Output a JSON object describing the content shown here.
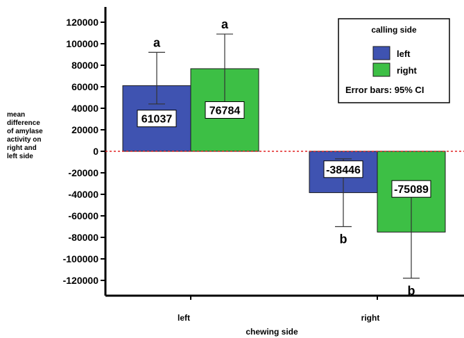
{
  "chart_data": {
    "type": "bar",
    "categories": [
      "left",
      "right"
    ],
    "series": [
      {
        "name": "left",
        "color": "#3f53b1",
        "values": [
          61037,
          -38446
        ],
        "ci": [
          [
            44000,
            92000
          ],
          [
            -70000,
            -7000
          ]
        ],
        "letters": [
          "a",
          "b"
        ]
      },
      {
        "name": "right",
        "color": "#3dbf45",
        "values": [
          76784,
          -75089
        ],
        "ci": [
          [
            44000,
            109000
          ],
          [
            -118000,
            -31000
          ]
        ],
        "letters": [
          "a",
          "b"
        ]
      }
    ],
    "xlabel": "chewing side",
    "ylabel_lines": [
      "mean",
      "difference",
      "of amylase",
      "activity on",
      "right and",
      "left  side"
    ],
    "ylim": [
      -128000,
      132000
    ],
    "yticks": [
      120000,
      100000,
      80000,
      60000,
      40000,
      20000,
      0,
      -20000,
      -40000,
      -60000,
      -80000,
      -100000,
      -120000
    ],
    "yticklabels": [
      "120000",
      "100000",
      "80000",
      "60000",
      "40000",
      "20000",
      "0",
      "-20000",
      "-40000",
      "-60000",
      "-80000",
      "-100000",
      "-120000"
    ],
    "value_labels": [
      [
        "61037",
        "-38446"
      ],
      [
        "76784",
        "-75089"
      ]
    ],
    "reference_line": {
      "y": 0,
      "color": "#e02020",
      "style": "dashed"
    },
    "legend": {
      "title": "calling side",
      "items": [
        "left",
        "right"
      ],
      "note": "Error bars: 95% CI",
      "placement": "top-right"
    }
  }
}
